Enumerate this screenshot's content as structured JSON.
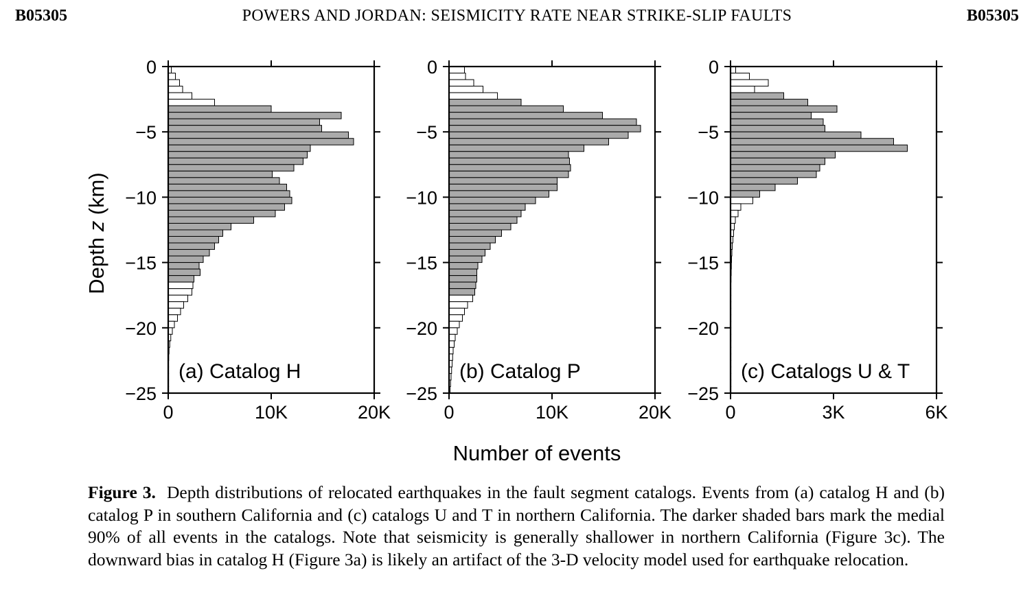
{
  "header": {
    "left_id": "B05305",
    "title": "POWERS AND JORDAN: SEISMICITY RATE NEAR STRIKE-SLIP FAULTS",
    "right_id": "B05305"
  },
  "figure": {
    "ylabel_prefix": "Depth ",
    "ylabel_var": "z",
    "ylabel_suffix": " (km)",
    "xlabel": "Number of events",
    "caption_label": "Figure 3.",
    "caption_text": "Depth distributions of relocated earthquakes in the fault segment catalogs. Events from (a) catalog H and (b) catalog P in southern California and (c) catalogs U and T in northern California. The darker shaded bars mark the medial 90% of all events in the catalogs. Note that seismicity is generally shallower in northern California (Figure 3c). The downward bias in catalog H (Figure 3a) is likely an artifact of the 3-D velocity model used for earthquake relocation."
  },
  "colors": {
    "shaded": "#aaaaaa",
    "unshaded": "#ffffff",
    "frame": "#000000"
  },
  "chart_data": [
    {
      "type": "bar",
      "orientation": "horizontal",
      "title": "(a) Catalog H",
      "ylabel": "Depth z (km)",
      "xlabel": "Number of events",
      "xlim": [
        0,
        20000
      ],
      "ylim": [
        -25,
        0
      ],
      "xticks": [
        "0",
        "10K",
        "20K"
      ],
      "yticks": [
        "0",
        "−5",
        "−10",
        "−15",
        "−20",
        "−25"
      ],
      "bin_width_km": 0.5,
      "shaded_bins": [
        6,
        32
      ],
      "values": [
        300,
        700,
        1100,
        1400,
        2300,
        4500,
        10000,
        16800,
        14700,
        14900,
        17500,
        18000,
        13800,
        13500,
        13100,
        12200,
        10100,
        10800,
        11500,
        11800,
        12000,
        11300,
        10400,
        8300,
        6100,
        5300,
        4900,
        4500,
        4000,
        3400,
        3000,
        3100,
        2500,
        2400,
        2300,
        1900,
        1500,
        1200,
        900,
        600,
        400,
        250,
        150,
        80,
        50,
        30,
        20,
        10,
        5,
        2
      ]
    },
    {
      "type": "bar",
      "orientation": "horizontal",
      "title": "(b) Catalog P",
      "ylabel": "Depth z (km)",
      "xlabel": "Number of events",
      "xlim": [
        0,
        20000
      ],
      "ylim": [
        -25,
        0
      ],
      "xticks": [
        "0",
        "10K",
        "20K"
      ],
      "yticks": [
        "0",
        "−5",
        "−10",
        "−15",
        "−20",
        "−25"
      ],
      "bin_width_km": 0.5,
      "shaded_bins": [
        5,
        34
      ],
      "values": [
        1500,
        1600,
        2400,
        3300,
        4700,
        7000,
        11100,
        14900,
        18200,
        18600,
        17400,
        15500,
        13100,
        11600,
        11700,
        11800,
        11600,
        10500,
        10500,
        9700,
        8400,
        7400,
        7000,
        6600,
        6000,
        5100,
        4500,
        4000,
        3500,
        3200,
        2800,
        2700,
        2700,
        2600,
        2500,
        2300,
        1800,
        1500,
        1300,
        1000,
        800,
        600,
        500,
        400,
        350,
        300,
        250,
        200,
        150,
        100
      ]
    },
    {
      "type": "bar",
      "orientation": "horizontal",
      "title": "(c) Catalogs U & T",
      "ylabel": "Depth z (km)",
      "xlabel": "Number of events",
      "xlim": [
        0,
        6000
      ],
      "ylim": [
        -25,
        0
      ],
      "xticks": [
        "0",
        "3K",
        "6K"
      ],
      "yticks": [
        "0",
        "−5",
        "−10",
        "−15",
        "−20",
        "−25"
      ],
      "bin_width_km": 0.5,
      "shaded_bins": [
        4,
        19
      ],
      "values": [
        150,
        550,
        1100,
        700,
        1550,
        2250,
        3100,
        2350,
        2700,
        2750,
        3800,
        4750,
        5150,
        3050,
        2750,
        2600,
        2500,
        1950,
        1300,
        850,
        650,
        300,
        220,
        140,
        110,
        90,
        70,
        50,
        40,
        30,
        25,
        20,
        15,
        12,
        10,
        8,
        6,
        5,
        4,
        3,
        2,
        2,
        1,
        1,
        1,
        1,
        1,
        1,
        1,
        1
      ]
    }
  ]
}
